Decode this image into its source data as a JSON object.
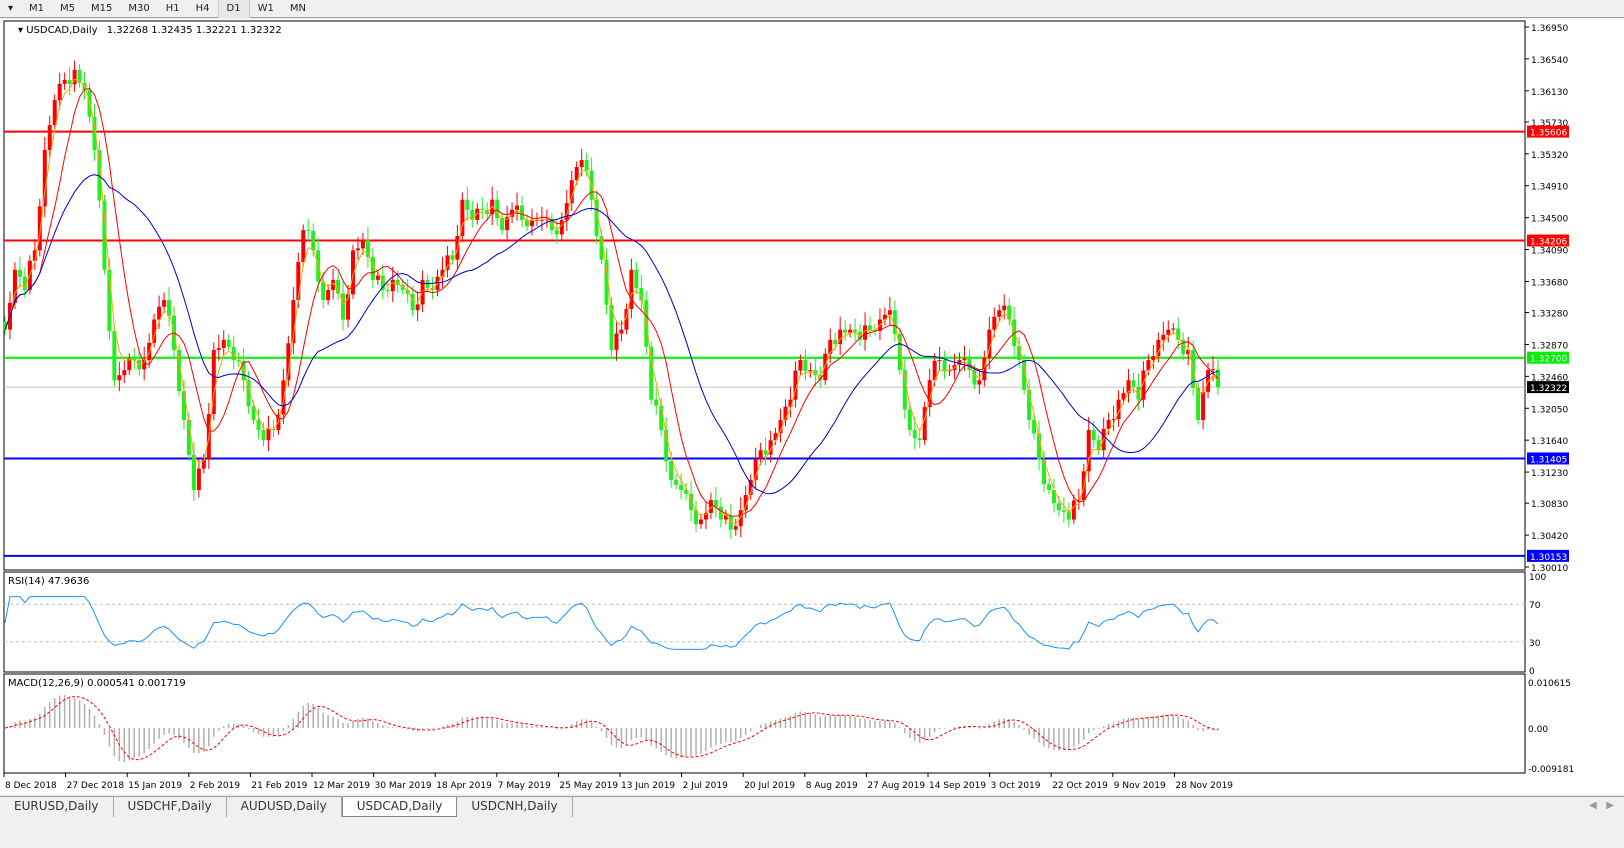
{
  "toolbar": {
    "timeframes": [
      "M1",
      "M5",
      "M15",
      "M30",
      "H1",
      "H4",
      "D1",
      "W1",
      "MN"
    ],
    "active": "D1"
  },
  "header": {
    "symbol": "USDCAD,Daily",
    "ohlc": "1.32268 1.32435 1.32221 1.32322"
  },
  "price_axis": {
    "ticks": [
      "1.36950",
      "1.36540",
      "1.36130",
      "1.35730",
      "1.35320",
      "1.34910",
      "1.34500",
      "1.34090",
      "1.33680",
      "1.33280",
      "1.32870",
      "1.32460",
      "1.32050",
      "1.31640",
      "1.31230",
      "1.30830",
      "1.30420",
      "1.30010"
    ]
  },
  "levels": [
    {
      "price": "1.35606",
      "color": "#ff0000"
    },
    {
      "price": "1.34206",
      "color": "#ff0000"
    },
    {
      "price": "1.32700",
      "color": "#00ee00"
    },
    {
      "price": "1.31405",
      "color": "#0000ff"
    },
    {
      "price": "1.30153",
      "color": "#0000ff"
    }
  ],
  "current_price": {
    "price": "1.32322",
    "color": "#000000"
  },
  "rsi": {
    "label": "RSI(14) 47.9636",
    "ticks": [
      "100",
      "70",
      "30",
      "0"
    ],
    "color": "#1e90ff"
  },
  "macd": {
    "label": "MACD(12,26,9) 0.000541 0.001719",
    "ticks": [
      "0.010615",
      "0.00",
      "-0.009181"
    ]
  },
  "date_axis": [
    "8 Dec 2018",
    "27 Dec 2018",
    "15 Jan 2019",
    "2 Feb 2019",
    "21 Feb 2019",
    "12 Mar 2019",
    "30 Mar 2019",
    "18 Apr 2019",
    "7 May 2019",
    "25 May 2019",
    "13 Jun 2019",
    "2 Jul 2019",
    "20 Jul 2019",
    "8 Aug 2019",
    "27 Aug 2019",
    "14 Sep 2019",
    "3 Oct 2019",
    "22 Oct 2019",
    "9 Nov 2019",
    "28 Nov 2019"
  ],
  "tabs": [
    "EURUSD,Daily",
    "USDCHF,Daily",
    "AUDUSD,Daily",
    "USDCAD,Daily",
    "USDCNH,Daily"
  ],
  "active_tab": "USDCAD,Daily",
  "colors": {
    "up_candle": "#ff0000",
    "down_candle": "#22ee22",
    "ma_fast": "#ffa500",
    "ma_mid": "#ff0000",
    "ma_slow": "#0000cc"
  },
  "chart_data": {
    "type": "candlestick",
    "note_series": "approximate closes read from chart",
    "ylim": [
      1.3001,
      1.3695
    ],
    "close": [
      1.3306,
      1.3383,
      1.3357,
      1.3408,
      1.3537,
      1.3601,
      1.3627,
      1.364,
      1.3614,
      1.3537,
      1.3383,
      1.3241,
      1.3254,
      1.3267,
      1.3267,
      1.3319,
      1.3344,
      1.328,
      1.319,
      1.31,
      1.3139,
      1.328,
      1.3293,
      1.3267,
      1.3241,
      1.319,
      1.3164,
      1.3177,
      1.3241,
      1.3344,
      1.3434,
      1.3408,
      1.3344,
      1.337,
      1.3319,
      1.3408,
      1.3421,
      1.337,
      1.3357,
      1.337,
      1.3357,
      1.3331,
      1.337,
      1.3357,
      1.3383,
      1.3396,
      1.3473,
      1.3447,
      1.346,
      1.3473,
      1.3434,
      1.346,
      1.3447,
      1.3447,
      1.3447,
      1.3434,
      1.3447,
      1.3498,
      1.3524,
      1.3473,
      1.3396,
      1.328,
      1.3306,
      1.3383,
      1.3344,
      1.3216,
      1.3177,
      1.3113,
      1.31,
      1.3074,
      1.3062,
      1.3087,
      1.3062,
      1.3049,
      1.3074,
      1.3113,
      1.3151,
      1.3164,
      1.319,
      1.3216,
      1.3267,
      1.3254,
      1.3241,
      1.3293,
      1.3306,
      1.3306,
      1.3293,
      1.3306,
      1.3319,
      1.3331,
      1.3254,
      1.3177,
      1.3164,
      1.3241,
      1.3267,
      1.3254,
      1.3267,
      1.3254,
      1.3241,
      1.3306,
      1.3331,
      1.3319,
      1.3267,
      1.319,
      1.3139,
      1.31,
      1.3074,
      1.3062,
      1.3087,
      1.3177,
      1.3151,
      1.319,
      1.3216,
      1.3241,
      1.3216,
      1.3267,
      1.3293,
      1.3306,
      1.3293,
      1.328,
      1.319,
      1.3254,
      1.3232
    ]
  }
}
